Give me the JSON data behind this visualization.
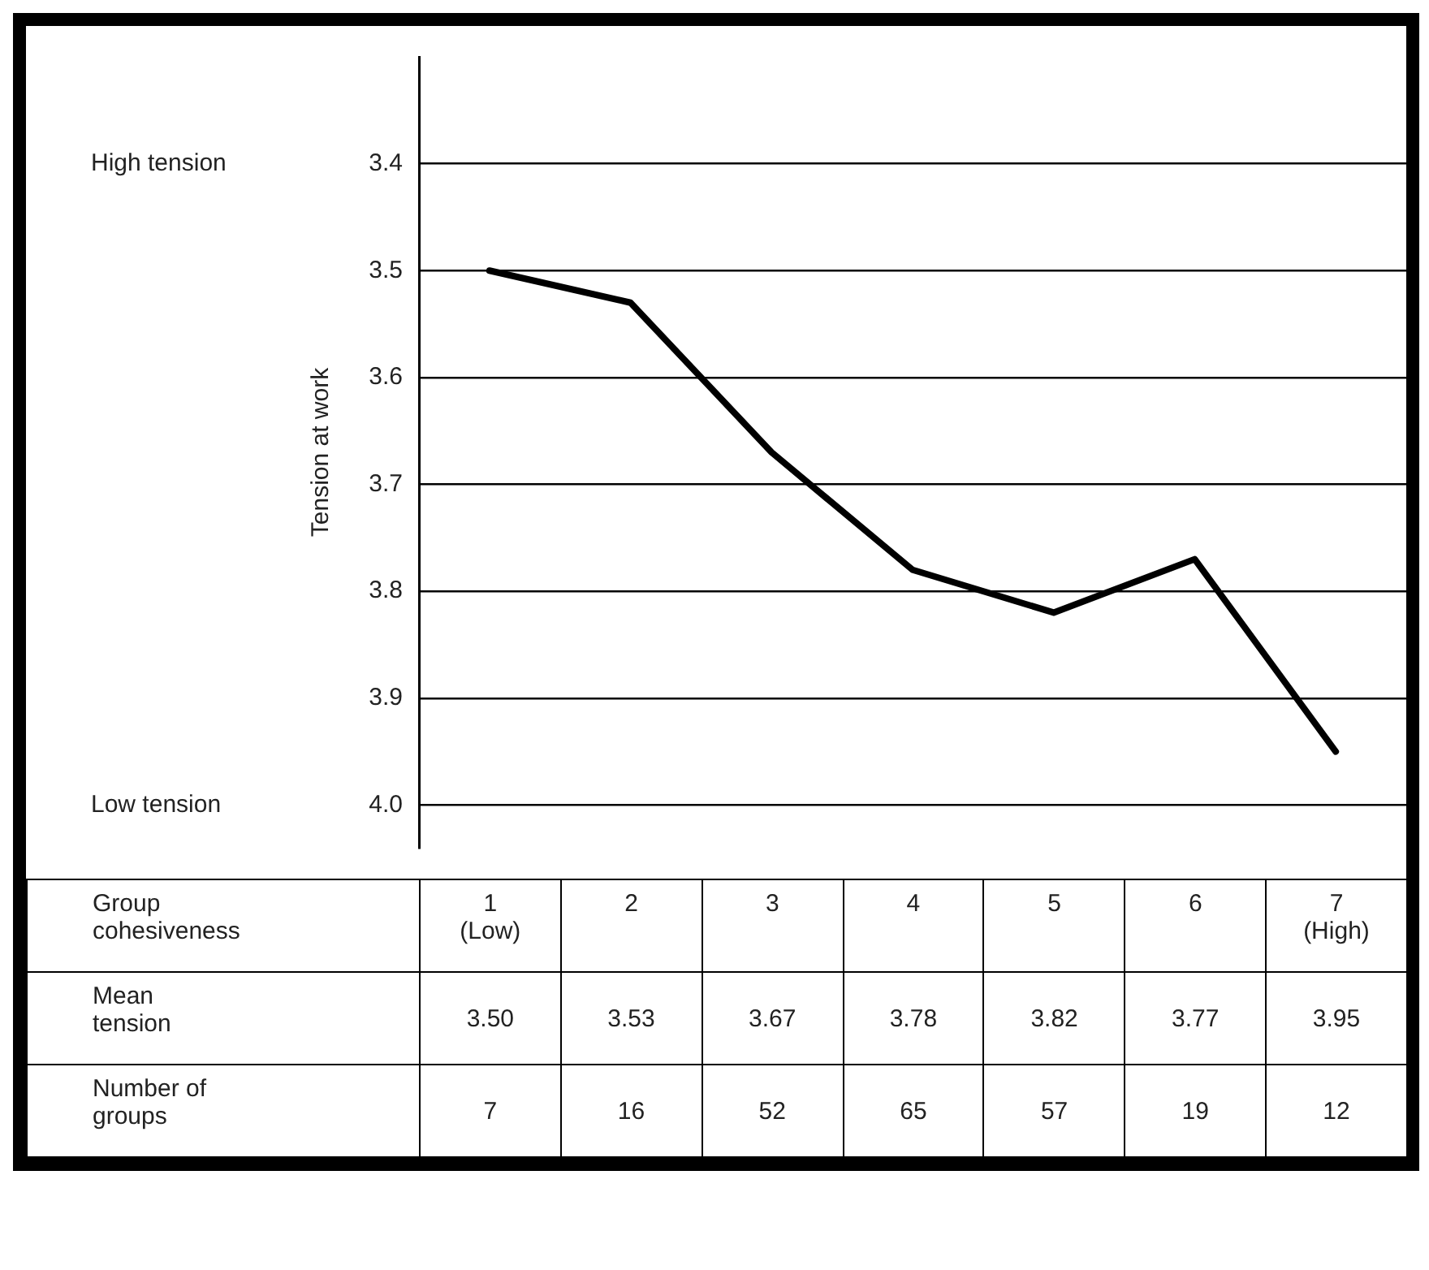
{
  "chart_data": {
    "type": "line",
    "ylabel": "Tension at work",
    "categories": [
      "1 (Low)",
      "2",
      "3",
      "4",
      "5",
      "6",
      "7 (High)"
    ],
    "series": [
      {
        "name": "Mean tension",
        "color": "#000000",
        "values": [
          3.5,
          3.53,
          3.67,
          3.78,
          3.82,
          3.77,
          3.95
        ],
        "value_labels": [
          "3.50",
          "3.53",
          "3.67",
          "3.78",
          "3.82",
          "3.77",
          "3.95"
        ]
      }
    ],
    "ylim": [
      4.04,
      3.3
    ],
    "yticks": [
      3.4,
      3.5,
      3.6,
      3.7,
      3.8,
      3.9,
      {
        "value": 4,
        "label": "4.0"
      }
    ],
    "grid": "y",
    "legend": false,
    "marker": "none",
    "line_style": "solid",
    "annotations": [
      "High tension",
      "Low tension",
      "Group cohesiveness",
      "Number of groups",
      "7",
      "16",
      "52",
      "65",
      "57",
      "19",
      "12"
    ]
  }
}
